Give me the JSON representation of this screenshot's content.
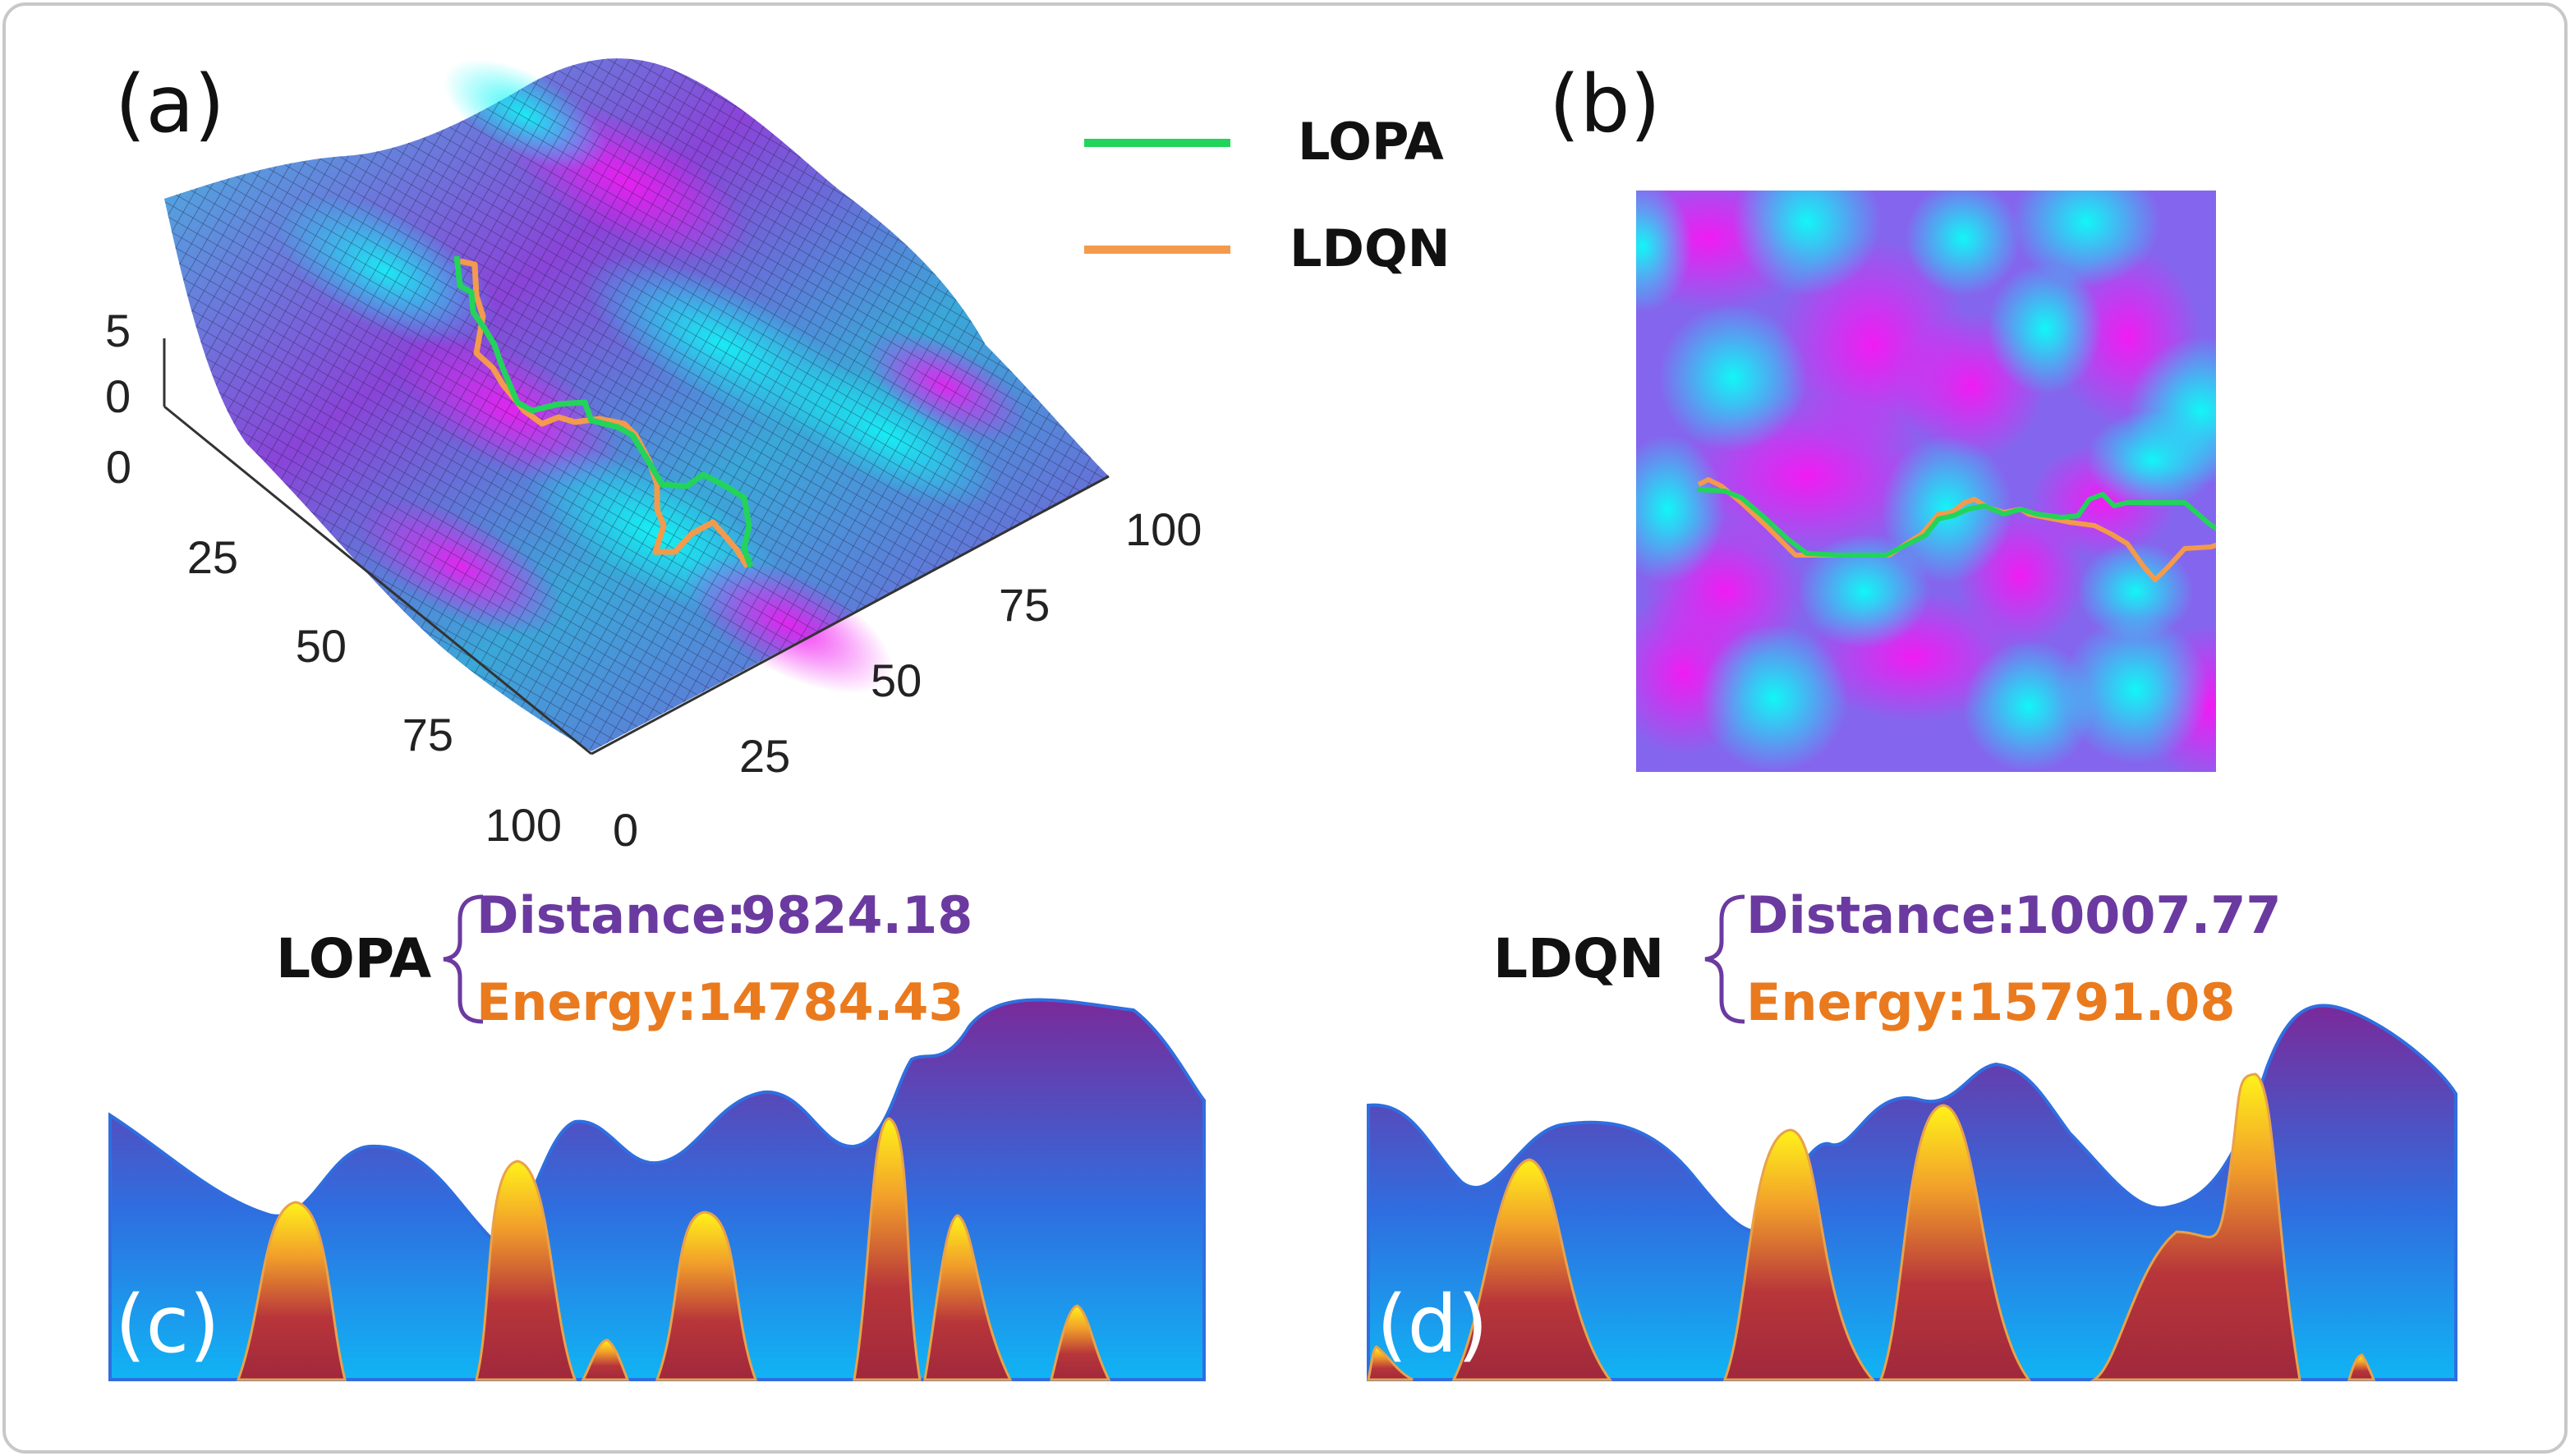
{
  "panels": {
    "a": {
      "label": "(a)",
      "z_ticks": [
        "5",
        "0"
      ],
      "y_ticks": [
        "0",
        "25",
        "50",
        "75",
        "100"
      ],
      "x_ticks": [
        "0",
        "25",
        "50",
        "75",
        "100"
      ]
    },
    "b": {
      "label": "(b)"
    },
    "c": {
      "label": "(c)"
    },
    "d": {
      "label": "(d)"
    }
  },
  "legend": [
    {
      "name": "LOPA",
      "color": "#22d45a"
    },
    {
      "name": "LDQN",
      "color": "#f39a4c"
    }
  ],
  "metrics": [
    {
      "algorithm": "LOPA",
      "distance_label": "Distance:",
      "distance_value": "9824.18",
      "energy_label": "Energy:",
      "energy_value": "14784.43"
    },
    {
      "algorithm": "LDQN",
      "distance_label": "Distance:",
      "distance_value": "10007.77",
      "energy_label": "Energy:",
      "energy_value": "15791.08"
    }
  ],
  "colors": {
    "terrain_magenta": "#e61cf0",
    "terrain_cyan": "#12f2f2",
    "terrain_purple": "#7a56d8",
    "profile_top": "#7a2a9a",
    "profile_bottom": "#12a8f0",
    "peak_top": "#fff21a",
    "peak_bottom": "#a0283c",
    "distance_text": "#6b3aa0",
    "energy_text": "#ea7a1e"
  }
}
